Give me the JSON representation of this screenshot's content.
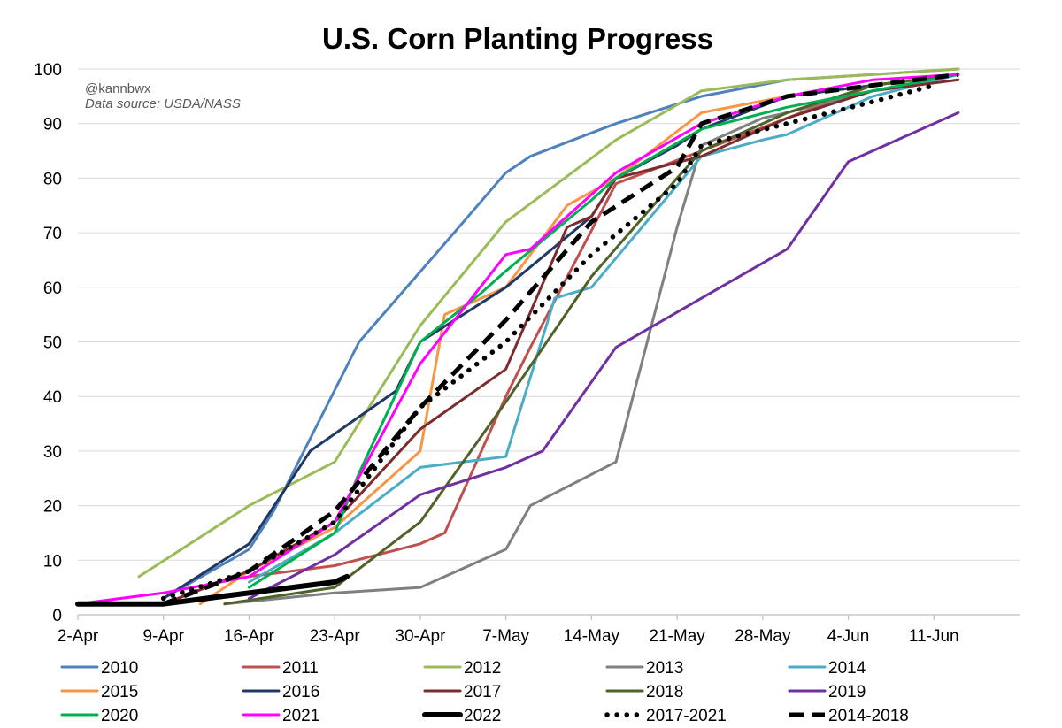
{
  "chart_data": {
    "type": "line",
    "title": "U.S. Corn Planting Progress",
    "credit": "@kannbwx",
    "source": "Data source: USDA/NASS",
    "xlabel": "",
    "ylabel": "",
    "ylim": [
      0,
      100
    ],
    "y_ticks": [
      "0",
      "10",
      "20",
      "30",
      "40",
      "50",
      "60",
      "70",
      "80",
      "90",
      "100"
    ],
    "x_ticks": [
      "2-Apr",
      "9-Apr",
      "16-Apr",
      "23-Apr",
      "30-Apr",
      "7-May",
      "14-May",
      "21-May",
      "28-May",
      "4-Jun",
      "11-Jun"
    ],
    "grid": "horizontal",
    "legend_position": "bottom",
    "series": [
      {
        "name": "2010",
        "color": "#4F81BD",
        "style": "solid",
        "x": [
          9,
          16,
          18,
          25,
          32,
          37,
          39,
          46,
          53,
          60,
          67,
          74
        ],
        "y": [
          3,
          12,
          19,
          50,
          68,
          81,
          84,
          90,
          95,
          98,
          99,
          100
        ]
      },
      {
        "name": "2011",
        "color": "#C0504D",
        "style": "solid",
        "x": [
          16,
          23,
          30,
          32,
          37,
          39,
          46,
          53,
          60,
          67,
          74
        ],
        "y": [
          7,
          9,
          13,
          15,
          40,
          49,
          79,
          85,
          91,
          97,
          99
        ]
      },
      {
        "name": "2012",
        "color": "#9BBB59",
        "style": "solid",
        "x": [
          7,
          16,
          23,
          30,
          37,
          46,
          53,
          60,
          67,
          74
        ],
        "y": [
          7,
          20,
          28,
          53,
          72,
          87,
          96,
          98,
          99,
          100
        ]
      },
      {
        "name": "2013",
        "color": "#808080",
        "style": "solid",
        "x": [
          14,
          23,
          30,
          37,
          39,
          46,
          51,
          53,
          58,
          60,
          67,
          74
        ],
        "y": [
          2,
          4,
          5,
          12,
          20,
          28,
          71,
          86,
          91,
          92,
          96,
          99
        ]
      },
      {
        "name": "2014",
        "color": "#4BACC6",
        "style": "solid",
        "x": [
          16,
          23,
          30,
          37,
          41,
          44,
          53,
          58,
          60,
          67,
          74
        ],
        "y": [
          6,
          15,
          27,
          29,
          58,
          60,
          84,
          87,
          88,
          95,
          99
        ]
      },
      {
        "name": "2015",
        "color": "#F79646",
        "style": "solid",
        "x": [
          12,
          16,
          23,
          30,
          32,
          37,
          42,
          46,
          53,
          60,
          67,
          74
        ],
        "y": [
          2,
          8,
          16,
          30,
          55,
          60,
          75,
          80,
          92,
          95,
          97,
          99
        ]
      },
      {
        "name": "2016",
        "color": "#1F3864",
        "style": "solid",
        "x": [
          9,
          16,
          21,
          28,
          30,
          37,
          44,
          46,
          51,
          53,
          60,
          67,
          74
        ],
        "y": [
          3,
          13,
          30,
          41,
          50,
          60,
          73,
          80,
          86,
          89,
          95,
          97,
          99
        ]
      },
      {
        "name": "2017",
        "color": "#7B2C2C",
        "style": "solid",
        "x": [
          9,
          16,
          23,
          30,
          37,
          42,
          44,
          46,
          53,
          60,
          67,
          74
        ],
        "y": [
          2,
          8,
          17,
          34,
          45,
          71,
          73,
          80,
          84,
          91,
          96,
          98
        ]
      },
      {
        "name": "2018",
        "color": "#4F6228",
        "style": "solid",
        "x": [
          14,
          23,
          30,
          37,
          44,
          51,
          53,
          60,
          67,
          74
        ],
        "y": [
          2,
          5,
          17,
          39,
          62,
          80,
          85,
          92,
          97,
          99
        ]
      },
      {
        "name": "2019",
        "color": "#7030A0",
        "style": "solid",
        "x": [
          16,
          23,
          30,
          37,
          40,
          46,
          53,
          60,
          65,
          74
        ],
        "y": [
          3,
          11,
          22,
          27,
          30,
          49,
          58,
          67,
          83,
          92
        ]
      },
      {
        "name": "2020",
        "color": "#00B050",
        "style": "solid",
        "x": [
          16,
          23,
          25,
          30,
          35,
          37,
          44,
          46,
          53,
          60,
          67,
          74
        ],
        "y": [
          5,
          15,
          26,
          50,
          59,
          63,
          76,
          80,
          89,
          93,
          96,
          99
        ]
      },
      {
        "name": "2021",
        "color": "#FF00FF",
        "style": "solid",
        "x": [
          2,
          9,
          16,
          23,
          30,
          37,
          39,
          46,
          53,
          60,
          67,
          74
        ],
        "y": [
          2,
          4,
          7,
          17,
          46,
          66,
          67,
          81,
          90,
          95,
          98,
          99
        ]
      },
      {
        "name": "2022",
        "color": "#000000",
        "style": "thick",
        "x": [
          2,
          9,
          16,
          23,
          24
        ],
        "y": [
          2,
          2,
          4,
          6,
          7
        ]
      },
      {
        "name": "2017-2021",
        "color": "#000000",
        "style": "dotted",
        "x": [
          9,
          16,
          23,
          30,
          37,
          44,
          51,
          53,
          60,
          67,
          72
        ],
        "y": [
          3,
          8,
          17,
          38,
          50,
          66,
          79,
          86,
          90,
          94,
          97
        ]
      },
      {
        "name": "2014-2018",
        "color": "#000000",
        "style": "dashed",
        "x": [
          9,
          16,
          23,
          30,
          37,
          44,
          51,
          53,
          60,
          67,
          74
        ],
        "y": [
          2,
          8,
          19,
          38,
          54,
          72,
          82,
          90,
          95,
          97,
          99
        ]
      }
    ]
  }
}
